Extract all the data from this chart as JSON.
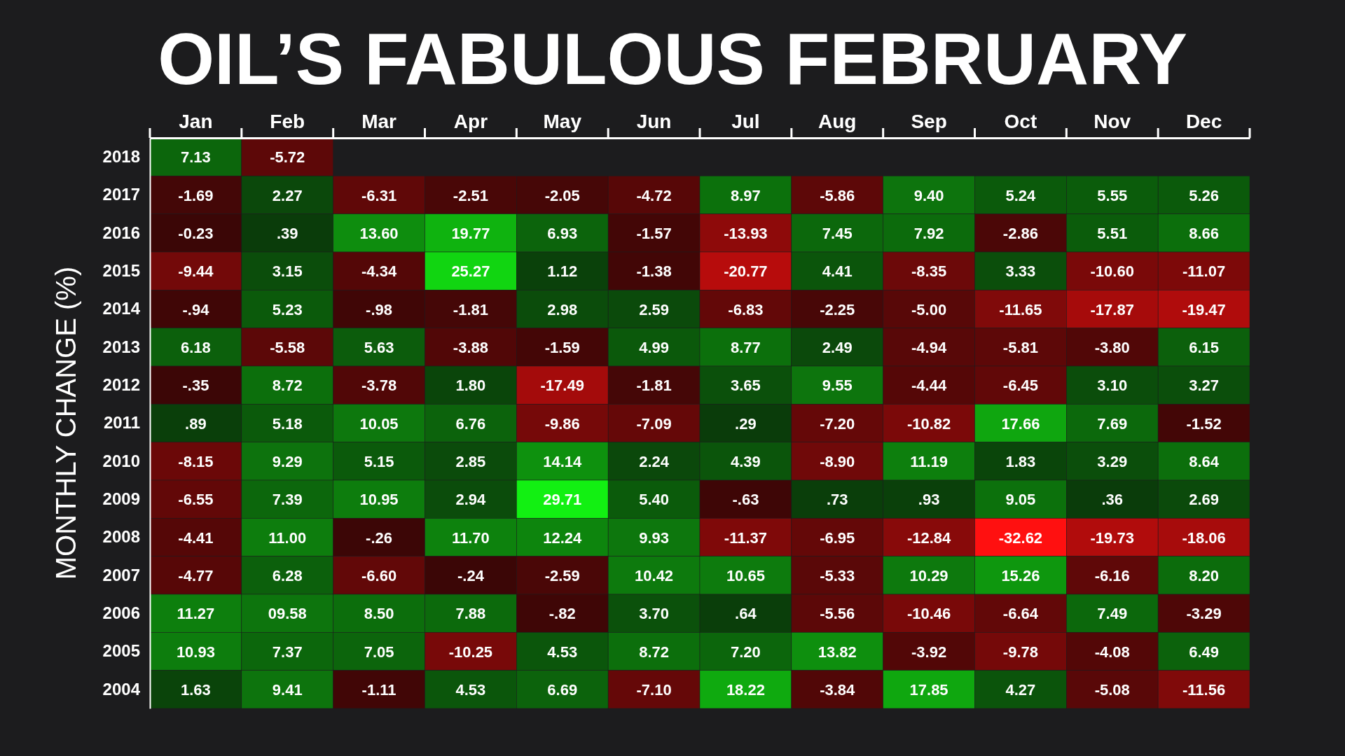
{
  "chart_data": {
    "type": "heatmap",
    "title": "OIL’S FABULOUS FEBRUARY",
    "ylabel": "MONTHLY CHANGE (%)",
    "categories": [
      "Jan",
      "Feb",
      "Mar",
      "Apr",
      "May",
      "Jun",
      "Jul",
      "Aug",
      "Sep",
      "Oct",
      "Nov",
      "Dec"
    ],
    "y_categories": [
      "2018",
      "2017",
      "2016",
      "2015",
      "2014",
      "2013",
      "2012",
      "2011",
      "2010",
      "2009",
      "2008",
      "2007",
      "2006",
      "2005",
      "2004"
    ],
    "cells": [
      [
        7.13,
        -5.72,
        null,
        null,
        null,
        null,
        null,
        null,
        null,
        null,
        null,
        null
      ],
      [
        -1.69,
        2.27,
        -6.31,
        -2.51,
        -2.05,
        -4.72,
        8.97,
        -5.86,
        9.4,
        5.24,
        5.55,
        5.26
      ],
      [
        -0.23,
        0.39,
        13.6,
        19.77,
        6.93,
        -1.57,
        -13.93,
        7.45,
        7.92,
        -2.86,
        5.51,
        8.66
      ],
      [
        -9.44,
        3.15,
        -4.34,
        25.27,
        1.12,
        -1.38,
        -20.77,
        4.41,
        -8.35,
        3.33,
        -10.6,
        -11.07
      ],
      [
        -0.94,
        5.23,
        -0.98,
        -1.81,
        2.98,
        2.59,
        -6.83,
        -2.25,
        -5.0,
        -11.65,
        -17.87,
        -19.47
      ],
      [
        6.18,
        -5.58,
        5.63,
        -3.88,
        -1.59,
        4.99,
        8.77,
        2.49,
        -4.94,
        -5.81,
        -3.8,
        6.15
      ],
      [
        -0.35,
        8.72,
        -3.78,
        1.8,
        -17.49,
        -1.81,
        3.65,
        9.55,
        -4.44,
        -6.45,
        3.1,
        3.27
      ],
      [
        0.89,
        5.18,
        10.05,
        6.76,
        -9.86,
        -7.09,
        0.29,
        -7.2,
        -10.82,
        17.66,
        7.69,
        -1.52
      ],
      [
        -8.15,
        9.29,
        5.15,
        2.85,
        14.14,
        2.24,
        4.39,
        -8.9,
        11.19,
        1.83,
        3.29,
        8.64
      ],
      [
        -6.55,
        7.39,
        10.95,
        2.94,
        29.71,
        5.4,
        -0.63,
        0.73,
        0.93,
        9.05,
        0.36,
        2.69
      ],
      [
        -4.41,
        11.0,
        -0.26,
        11.7,
        12.24,
        9.93,
        -11.37,
        -6.95,
        -12.84,
        -32.62,
        -19.73,
        -18.06
      ],
      [
        -4.77,
        6.28,
        -6.6,
        -0.24,
        -2.59,
        10.42,
        10.65,
        -5.33,
        10.29,
        15.26,
        -6.16,
        8.2
      ],
      [
        11.27,
        9.58,
        8.5,
        7.88,
        -0.82,
        3.7,
        0.64,
        -5.56,
        -10.46,
        -6.64,
        7.49,
        -3.29
      ],
      [
        10.93,
        7.37,
        7.05,
        -10.25,
        4.53,
        8.72,
        7.2,
        13.82,
        -3.92,
        -9.78,
        -4.08,
        6.49
      ],
      [
        1.63,
        9.41,
        -1.11,
        4.53,
        6.69,
        -7.1,
        18.22,
        -3.84,
        17.85,
        4.27,
        -5.08,
        -11.56
      ]
    ],
    "cell_labels": [
      [
        "7.13",
        "-5.72",
        null,
        null,
        null,
        null,
        null,
        null,
        null,
        null,
        null,
        null
      ],
      [
        "-1.69",
        "2.27",
        "-6.31",
        "-2.51",
        "-2.05",
        "-4.72",
        "8.97",
        "-5.86",
        "9.40",
        "5.24",
        "5.55",
        "5.26"
      ],
      [
        "-0.23",
        ".39",
        "13.60",
        "19.77",
        "6.93",
        "-1.57",
        "-13.93",
        "7.45",
        "7.92",
        "-2.86",
        "5.51",
        "8.66"
      ],
      [
        "-9.44",
        "3.15",
        "-4.34",
        "25.27",
        "1.12",
        "-1.38",
        "-20.77",
        "4.41",
        "-8.35",
        "3.33",
        "-10.60",
        "-11.07"
      ],
      [
        "-.94",
        "5.23",
        "-.98",
        "-1.81",
        "2.98",
        "2.59",
        "-6.83",
        "-2.25",
        "-5.00",
        "-11.65",
        "-17.87",
        "-19.47"
      ],
      [
        "6.18",
        "-5.58",
        "5.63",
        "-3.88",
        "-1.59",
        "4.99",
        "8.77",
        "2.49",
        "-4.94",
        "-5.81",
        "-3.80",
        "6.15"
      ],
      [
        "-.35",
        "8.72",
        "-3.78",
        "1.80",
        "-17.49",
        "-1.81",
        "3.65",
        "9.55",
        "-4.44",
        "-6.45",
        "3.10",
        "3.27"
      ],
      [
        ".89",
        "5.18",
        "10.05",
        "6.76",
        "-9.86",
        "-7.09",
        ".29",
        "-7.20",
        "-10.82",
        "17.66",
        "7.69",
        "-1.52"
      ],
      [
        "-8.15",
        "9.29",
        "5.15",
        "2.85",
        "14.14",
        "2.24",
        "4.39",
        "-8.90",
        "11.19",
        "1.83",
        "3.29",
        "8.64"
      ],
      [
        "-6.55",
        "7.39",
        "10.95",
        "2.94",
        "29.71",
        "5.40",
        "-.63",
        ".73",
        ".93",
        "9.05",
        ".36",
        "2.69"
      ],
      [
        "-4.41",
        "11.00",
        "-.26",
        "11.70",
        "12.24",
        "9.93",
        "-11.37",
        "-6.95",
        "-12.84",
        "-32.62",
        "-19.73",
        "-18.06"
      ],
      [
        "-4.77",
        "6.28",
        "-6.60",
        "-.24",
        "-2.59",
        "10.42",
        "10.65",
        "-5.33",
        "10.29",
        "15.26",
        "-6.16",
        "8.20"
      ],
      [
        "11.27",
        "09.58",
        "8.50",
        "7.88",
        "-.82",
        "3.70",
        ".64",
        "-5.56",
        "-10.46",
        "-6.64",
        "7.49",
        "-3.29"
      ],
      [
        "10.93",
        "7.37",
        "7.05",
        "-10.25",
        "4.53",
        "8.72",
        "7.20",
        "13.82",
        "-3.92",
        "-9.78",
        "-4.08",
        "6.49"
      ],
      [
        "1.63",
        "9.41",
        "-1.11",
        "4.53",
        "6.69",
        "-7.10",
        "18.22",
        "-3.84",
        "17.85",
        "4.27",
        "-5.08",
        "-11.56"
      ]
    ]
  }
}
